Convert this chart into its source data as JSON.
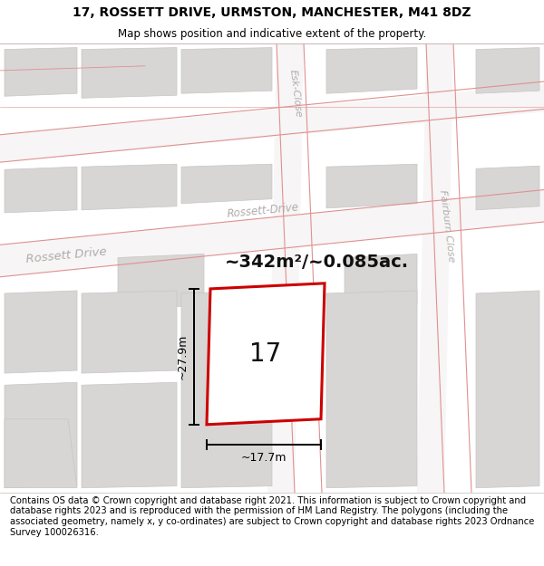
{
  "title": "17, ROSSETT DRIVE, URMSTON, MANCHESTER, M41 8DZ",
  "subtitle": "Map shows position and indicative extent of the property.",
  "footer": "Contains OS data © Crown copyright and database right 2021. This information is subject to Crown copyright and database rights 2023 and is reproduced with the permission of HM Land Registry. The polygons (including the associated geometry, namely x, y co-ordinates) are subject to Crown copyright and database rights 2023 Ordnance Survey 100026316.",
  "area_text": "~342m²/~0.085ac.",
  "width_text": "~17.7m",
  "height_text": "~27.9m",
  "number_text": "17",
  "map_bg": "#ece9e9",
  "road_fill": "#f7f5f5",
  "building_color": "#d8d5d5",
  "building_edge": "#c8c5c5",
  "grid_color": "#e09090",
  "red_color": "#cc0000",
  "black_color": "#111111",
  "street_label_color": "#b0acac",
  "title_fontsize": 10,
  "subtitle_fontsize": 8.5,
  "footer_fontsize": 7.2,
  "area_fontsize": 14,
  "number_fontsize": 20,
  "dim_fontsize": 9
}
